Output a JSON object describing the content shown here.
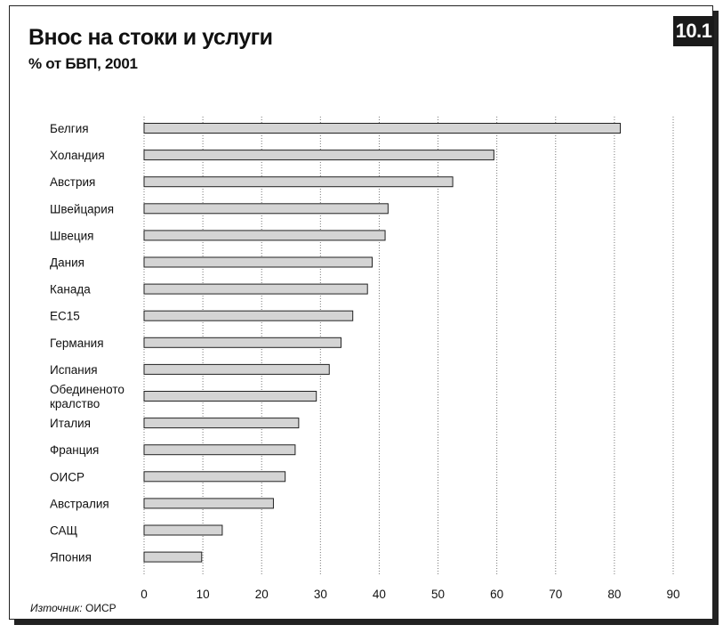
{
  "header": {
    "title": "Внос на стоки и услуги",
    "subtitle": "% от БВП, 2001",
    "badge": "10.1"
  },
  "source": {
    "prefix": "Източник:",
    "text": " ОИСР"
  },
  "colors": {
    "bar_fill": "#d4d4d4",
    "bar_stroke": "#222222",
    "grid": "#777777",
    "badge_bg": "#1a1a1a"
  },
  "chart_data": {
    "type": "bar",
    "orientation": "horizontal",
    "title": "Внос на стоки и услуги",
    "subtitle": "% от БВП, 2001",
    "categories": [
      "Белгия",
      "Холандия",
      "Австрия",
      "Швейцария",
      "Швеция",
      "Дания",
      "Канада",
      "ЕС15",
      "Германия",
      "Испания",
      "Обединеното кралство",
      "Италия",
      "Франция",
      "ОИСР",
      "Австралия",
      "САЩ",
      "Япония"
    ],
    "values": [
      81,
      59.5,
      52.5,
      41.5,
      41,
      38.8,
      38,
      35.5,
      33.5,
      31.5,
      29.3,
      26.3,
      25.7,
      24,
      22,
      13.3,
      9.8
    ],
    "xlim": [
      0,
      90
    ],
    "xticks": [
      "0",
      "10",
      "20",
      "30",
      "40",
      "50",
      "60",
      "70",
      "80",
      "90"
    ],
    "grid": true,
    "grid_style": "dotted vertical",
    "legend": "none"
  }
}
